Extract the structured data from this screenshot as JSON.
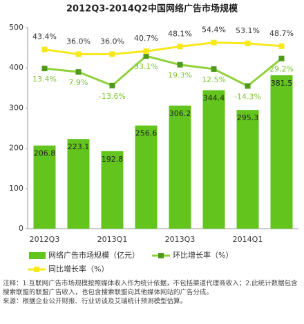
{
  "chart_data": {
    "type": "bar",
    "title": "2012Q3-2014Q2中国网络广告市场规模",
    "categories": [
      "2012Q3",
      null,
      "2013Q1",
      null,
      "2013Q3",
      null,
      "2014Q1",
      null
    ],
    "ylim": [
      0,
      500
    ],
    "yticks": [
      0,
      100,
      200,
      300,
      400,
      500
    ],
    "y2lim": [
      -240,
      78
    ],
    "grid": false,
    "series": [
      {
        "name": "网络广告市场规模（亿元）",
        "type": "bar",
        "color": "#62c41c",
        "values": [
          206.8,
          223.1,
          192.8,
          256.6,
          306.2,
          344.4,
          295.3,
          381.5
        ]
      },
      {
        "name": "环比增长率（%）",
        "type": "line",
        "axis": "y2",
        "color": "#8fd13a",
        "marker_color": "#4f9a1a",
        "values": [
          13.4,
          7.9,
          -13.6,
          33.1,
          19.3,
          12.5,
          -14.3,
          29.2
        ],
        "value_labels": [
          "13.4%",
          "7.9%",
          "-13.6%",
          "33.1%",
          "19.3%",
          "12.5%",
          "-14.3%",
          "29.2%"
        ]
      },
      {
        "name": "同比增长率（%）",
        "type": "line",
        "axis": "y2",
        "color": "#f7e81c",
        "marker_color": "#f7e81c",
        "values": [
          43.4,
          36.0,
          36.0,
          40.7,
          48.1,
          54.4,
          53.1,
          48.7
        ],
        "value_labels": [
          "43.4%",
          "36.0%",
          "36.0%",
          "40.7%",
          "48.1%",
          "54.4%",
          "53.1%",
          "48.7%"
        ]
      }
    ],
    "notes": [
      "注释：1.互联网广告市场规模按照媒体收入作为统计依据，不包括渠道代理商收入；2.此统计数据包含搜索联盟的联盟广告收入，也包含搜索联盟向其他媒体网站的广告分成。",
      "来源：根据企业公开财报、行业访谈及艾瑞统计预测模型估算。"
    ]
  }
}
